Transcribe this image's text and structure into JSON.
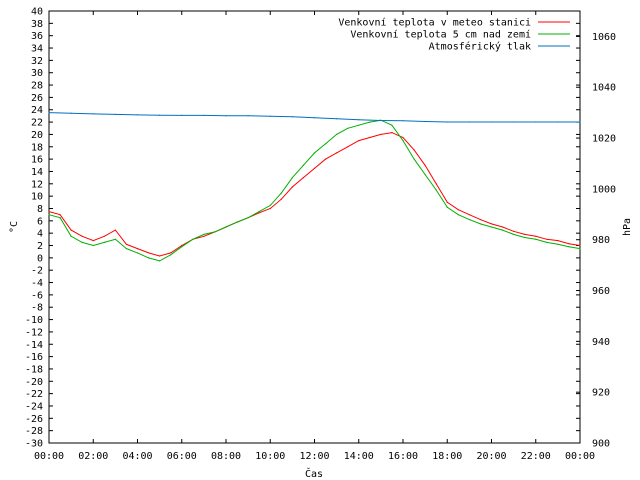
{
  "chart_data": {
    "type": "line",
    "xlabel": "Čas",
    "ylabel": "°C",
    "y2label": "hPa",
    "ylim": [
      -30,
      40
    ],
    "y2lim": [
      900,
      1070
    ],
    "xlim": [
      0,
      24
    ],
    "x_tick_labels": [
      "00:00",
      "02:00",
      "04:00",
      "06:00",
      "08:00",
      "10:00",
      "12:00",
      "14:00",
      "16:00",
      "18:00",
      "20:00",
      "22:00",
      "00:00"
    ],
    "y_ticks": [
      40,
      38,
      36,
      34,
      32,
      30,
      28,
      26,
      24,
      22,
      20,
      18,
      16,
      14,
      12,
      10,
      8,
      6,
      4,
      2,
      0,
      -2,
      -4,
      -6,
      -8,
      -10,
      -12,
      -14,
      -16,
      -18,
      -20,
      -22,
      -24,
      -26,
      -28,
      -30
    ],
    "y2_ticks": [
      1060,
      1040,
      1020,
      1000,
      980,
      960,
      940,
      920,
      900
    ],
    "grid": false,
    "legend_position": "top-right",
    "series": [
      {
        "name": "Venkovní teplota v meteo stanici",
        "axis": "left",
        "color": "#ff0000",
        "x": [
          0,
          0.5,
          1,
          1.5,
          2,
          2.5,
          3,
          3.5,
          4,
          4.5,
          5,
          5.5,
          6,
          6.5,
          7,
          7.5,
          8,
          8.5,
          9,
          9.5,
          10,
          10.5,
          11,
          11.5,
          12,
          12.5,
          13,
          13.5,
          14,
          14.5,
          15,
          15.5,
          16,
          16.5,
          17,
          17.5,
          18,
          18.5,
          19,
          19.5,
          20,
          20.5,
          21,
          21.5,
          22,
          22.5,
          23,
          23.5,
          24
        ],
        "values": [
          7.5,
          7,
          4.5,
          3.5,
          2.8,
          3.5,
          4.5,
          2.2,
          1.5,
          0.8,
          0.3,
          0.8,
          2,
          3,
          3.5,
          4.2,
          5,
          5.8,
          6.5,
          7.3,
          8,
          9.5,
          11.5,
          13,
          14.5,
          16,
          17,
          18,
          19,
          19.5,
          20,
          20.3,
          19.5,
          17.5,
          15,
          12,
          9,
          7.8,
          7,
          6.2,
          5.5,
          5,
          4.3,
          3.8,
          3.5,
          3,
          2.8,
          2.3,
          2
        ]
      },
      {
        "name": "Venkovní teplota 5 cm nad zemí",
        "axis": "left",
        "color": "#00b000",
        "x": [
          0,
          0.5,
          1,
          1.5,
          2,
          2.5,
          3,
          3.5,
          4,
          4.5,
          5,
          5.5,
          6,
          6.5,
          7,
          7.5,
          8,
          8.5,
          9,
          9.5,
          10,
          10.5,
          11,
          11.5,
          12,
          12.5,
          13,
          13.5,
          14,
          14.5,
          15,
          15.5,
          16,
          16.5,
          17,
          17.5,
          18,
          18.5,
          19,
          19.5,
          20,
          20.5,
          21,
          21.5,
          22,
          22.5,
          23,
          23.5,
          24
        ],
        "values": [
          7,
          6.5,
          3.5,
          2.5,
          2,
          2.5,
          3,
          1.5,
          0.8,
          0,
          -0.5,
          0.5,
          1.8,
          3,
          3.8,
          4.2,
          5,
          5.8,
          6.5,
          7.5,
          8.5,
          10.5,
          13,
          15,
          17,
          18.5,
          20,
          21,
          21.5,
          22,
          22.3,
          21.5,
          19,
          16,
          13.5,
          11,
          8.2,
          7,
          6.2,
          5.5,
          5,
          4.5,
          3.8,
          3.3,
          3,
          2.5,
          2.2,
          1.8,
          1.5
        ]
      },
      {
        "name": "Atmosférický tlak",
        "axis": "right",
        "color": "#0070c0",
        "x": [
          0,
          1,
          2,
          3,
          4,
          5,
          6,
          7,
          8,
          9,
          10,
          11,
          12,
          13,
          14,
          15,
          16,
          17,
          18,
          19,
          20,
          21,
          22,
          23,
          24
        ],
        "values": [
          1030,
          1029.8,
          1029.5,
          1029.3,
          1029.1,
          1029,
          1028.9,
          1028.9,
          1028.8,
          1028.8,
          1028.6,
          1028.4,
          1028,
          1027.6,
          1027.2,
          1026.9,
          1026.8,
          1026.5,
          1026.3,
          1026.3,
          1026.3,
          1026.3,
          1026.3,
          1026.3,
          1026.3
        ]
      }
    ]
  }
}
